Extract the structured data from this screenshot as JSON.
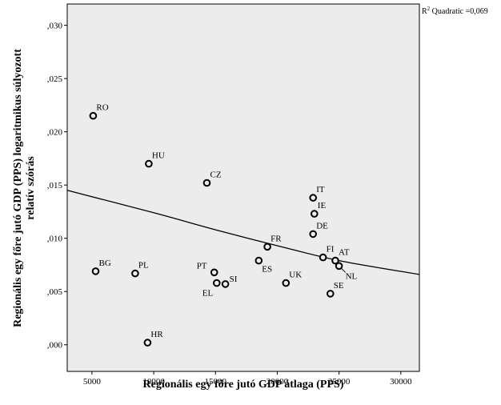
{
  "chart_data": {
    "type": "scatter",
    "title": "",
    "xlabel": "Regionális egy főre jutó GDP átlaga (PPS)",
    "ylabel_lines": [
      "Regionális egy főre jutó GDP (PPS) logaritmikus súlyozott",
      "relatív szórás"
    ],
    "xlim": [
      3000,
      31500
    ],
    "ylim": [
      -0.0025,
      0.032
    ],
    "x_ticks": [
      5000,
      10000,
      15000,
      20000,
      25000,
      30000
    ],
    "x_tick_labels": [
      "5000",
      "10000",
      "15000",
      "20000",
      "25000",
      "30000"
    ],
    "y_ticks": [
      0.0,
      0.005,
      0.01,
      0.015,
      0.02,
      0.025,
      0.03
    ],
    "y_tick_labels": [
      ",000",
      ",005",
      ",010",
      ",015",
      ",020",
      ",025",
      ",030"
    ],
    "grid": false,
    "background": "#ececec",
    "points": [
      {
        "label": "RO",
        "x": 5100,
        "y": 0.0215
      },
      {
        "label": "HU",
        "x": 9600,
        "y": 0.017
      },
      {
        "label": "CZ",
        "x": 14300,
        "y": 0.0152
      },
      {
        "label": "IT",
        "x": 22900,
        "y": 0.0138
      },
      {
        "label": "IE",
        "x": 23000,
        "y": 0.0123
      },
      {
        "label": "DE",
        "x": 22900,
        "y": 0.0104
      },
      {
        "label": "FR",
        "x": 19200,
        "y": 0.0092
      },
      {
        "label": "FI",
        "x": 23700,
        "y": 0.0082
      },
      {
        "label": "AT",
        "x": 24700,
        "y": 0.0079
      },
      {
        "label": "NL",
        "x": 25000,
        "y": 0.0074
      },
      {
        "label": "BG",
        "x": 5300,
        "y": 0.0069
      },
      {
        "label": "PL",
        "x": 8500,
        "y": 0.0067
      },
      {
        "label": "PT",
        "x": 14900,
        "y": 0.0068
      },
      {
        "label": "ES",
        "x": 18500,
        "y": 0.0079
      },
      {
        "label": "UK",
        "x": 20700,
        "y": 0.0058
      },
      {
        "label": "SI",
        "x": 15800,
        "y": 0.0057
      },
      {
        "label": "EL",
        "x": 15100,
        "y": 0.0058
      },
      {
        "label": "SE",
        "x": 24300,
        "y": 0.0048
      },
      {
        "label": "HR",
        "x": 9500,
        "y": 0.0002
      }
    ],
    "fit": {
      "type": "quadratic",
      "note_prefix": "R",
      "note_sup": "2",
      "note_suffix": " Quadratic =0,069",
      "curve": [
        {
          "x": 3000,
          "y": 0.0145
        },
        {
          "x": 10000,
          "y": 0.0124
        },
        {
          "x": 15000,
          "y": 0.0108
        },
        {
          "x": 20000,
          "y": 0.0093
        },
        {
          "x": 25000,
          "y": 0.0079
        },
        {
          "x": 31500,
          "y": 0.0066
        }
      ]
    }
  }
}
